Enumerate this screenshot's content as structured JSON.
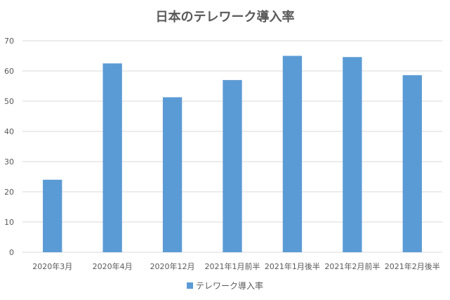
{
  "chart_data": {
    "type": "bar",
    "title": "日本のテレワーク導入率",
    "categories": [
      "2020年3月",
      "2020年4月",
      "2020年12月",
      "2021年1月前半",
      "2021年1月後半",
      "2021年2月前半",
      "2021年2月後半"
    ],
    "series": [
      {
        "name": "テレワーク導入率",
        "values": [
          24.0,
          62.5,
          51.3,
          57.0,
          65.0,
          64.6,
          58.6
        ]
      }
    ],
    "ylim": [
      0,
      70
    ],
    "yticks": [
      0,
      10,
      20,
      30,
      40,
      50,
      60,
      70
    ],
    "xlabel": "",
    "ylabel": "",
    "grid": true,
    "legend_position": "bottom",
    "colors": {
      "bar": "#5b9bd5",
      "grid": "#d9d9d9",
      "text": "#595959"
    }
  }
}
